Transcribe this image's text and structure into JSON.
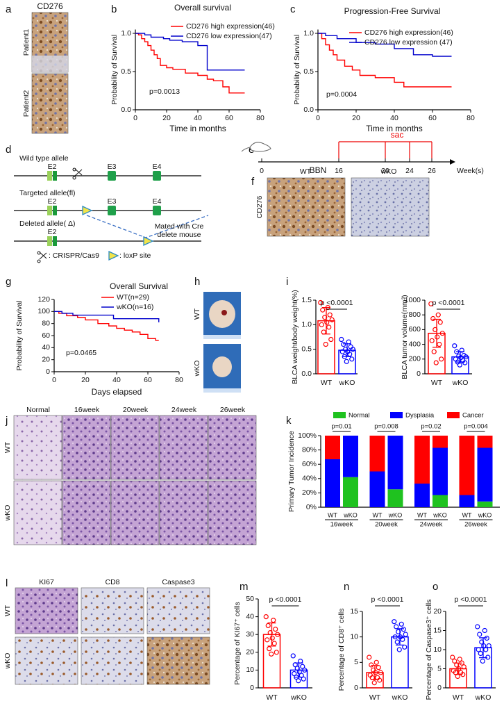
{
  "panel_letters": [
    "a",
    "b",
    "c",
    "d",
    "e",
    "f",
    "g",
    "h",
    "i",
    "j",
    "k",
    "l",
    "m",
    "n",
    "o"
  ],
  "panel_a": {
    "title": "CD276",
    "rows": [
      "Patient1",
      "Patient2"
    ]
  },
  "panel_d": {
    "alleles": [
      "Wild type allele",
      "Targeted allele(fl)",
      "Deleted allele( Δ)"
    ],
    "exons": [
      "E2",
      "E3",
      "E4"
    ],
    "note": [
      "Mated with Cre",
      "delete mouse"
    ],
    "legend": [
      ": CRISPR/Cas9",
      ": loxP site"
    ]
  },
  "panel_e": {
    "treatment": "BBN",
    "weeks": [
      0,
      16,
      20,
      24,
      26
    ],
    "unit": "Week(s)",
    "sac": "sac"
  },
  "panel_f": {
    "columns": [
      "WT",
      "wKO"
    ],
    "row": "CD276"
  },
  "panel_h": {
    "rows": [
      "WT",
      "wKO"
    ]
  },
  "panel_j": {
    "columns": [
      "Normal",
      "16week",
      "20week",
      "24week",
      "26week"
    ],
    "rows": [
      "WT",
      "wKO"
    ]
  },
  "panel_l": {
    "columns": [
      "KI67",
      "CD8",
      "Caspase3"
    ],
    "rows": [
      "WT",
      "wKO"
    ]
  },
  "chart_data": [
    {
      "type": "line",
      "step": true,
      "title": "Overall survival",
      "xlabel": "Time in months",
      "ylabel": "Probability of Survival",
      "xlim": [
        0,
        80
      ],
      "xticks": [
        0,
        20,
        40,
        60,
        80
      ],
      "ylim": [
        0,
        1.05
      ],
      "yticks": [
        {
          "value": 0,
          "label": "0.0"
        },
        0.5,
        {
          "value": 1,
          "label": "1.0"
        }
      ],
      "annotation": "p=0.0013",
      "series": [
        {
          "name": "CD276 high expression(46)",
          "color": "#ff0000",
          "x": [
            0,
            2,
            4,
            6,
            8,
            10,
            12,
            14,
            16,
            20,
            24,
            28,
            32,
            40,
            46,
            50,
            56,
            60,
            64,
            70
          ],
          "values": [
            1,
            0.98,
            0.93,
            0.89,
            0.84,
            0.78,
            0.72,
            0.67,
            0.58,
            0.55,
            0.53,
            0.53,
            0.48,
            0.45,
            0.4,
            0.38,
            0.3,
            0.22,
            0.22,
            0.22
          ]
        },
        {
          "name": "CD276 low expression(47)",
          "color": "#0000cc",
          "x": [
            0,
            6,
            10,
            18,
            22,
            30,
            40,
            46,
            60,
            70
          ],
          "values": [
            1,
            0.98,
            0.95,
            0.93,
            0.91,
            0.89,
            0.84,
            0.52,
            0.52,
            0.52
          ]
        }
      ]
    },
    {
      "type": "line",
      "step": true,
      "title": "Progression-Free Survival",
      "xlabel": "Time in months",
      "ylabel": "Probability of Survival",
      "xlim": [
        0,
        80
      ],
      "xticks": [
        0,
        20,
        40,
        60,
        80
      ],
      "ylim": [
        0,
        1.05
      ],
      "yticks": [
        {
          "value": 0,
          "label": "0.0"
        },
        0.5,
        {
          "value": 1,
          "label": "1.0"
        }
      ],
      "annotation": "p=0.0004",
      "series": [
        {
          "name": "CD276 high expression(46)",
          "color": "#ff0000",
          "x": [
            0,
            2,
            4,
            6,
            8,
            10,
            14,
            18,
            22,
            30,
            40,
            45,
            60,
            70
          ],
          "values": [
            1,
            0.93,
            0.85,
            0.78,
            0.72,
            0.65,
            0.57,
            0.52,
            0.45,
            0.42,
            0.36,
            0.3,
            0.3,
            0.3
          ]
        },
        {
          "name": "CD276 low expression (47)",
          "color": "#0000cc",
          "x": [
            0,
            4,
            10,
            20,
            30,
            40,
            50,
            60,
            70
          ],
          "values": [
            1,
            0.97,
            0.93,
            0.88,
            0.86,
            0.8,
            0.72,
            0.7,
            0.7
          ]
        }
      ]
    },
    {
      "type": "line",
      "step": true,
      "title": "Overall Survival",
      "xlabel": "Days elapsed",
      "ylabel": "Probability of Survival",
      "xlim": [
        0,
        80
      ],
      "xticks": [
        0,
        20,
        40,
        60,
        80
      ],
      "ylim": [
        0,
        120
      ],
      "yticks": [
        0,
        20,
        40,
        60,
        80,
        100,
        120
      ],
      "annotation": "p=0.0465",
      "series": [
        {
          "name": "WT(n=29)",
          "color": "#ff0000",
          "x": [
            0,
            3,
            8,
            15,
            20,
            28,
            35,
            40,
            45,
            50,
            55,
            60,
            65,
            67
          ],
          "values": [
            100,
            97,
            93,
            90,
            86,
            80,
            76,
            72,
            69,
            66,
            62,
            55,
            52,
            52
          ]
        },
        {
          "name": "wKO(n=16)",
          "color": "#0000cc",
          "x": [
            0,
            5,
            12,
            38,
            65,
            67
          ],
          "values": [
            100,
            97,
            94,
            88,
            88,
            82
          ]
        }
      ]
    },
    {
      "type": "bar",
      "ylabel": "BLCA weight/body weight(%)",
      "categories": [
        "WT",
        "wKO"
      ],
      "colors": [
        "#ff0000",
        "#0000ff"
      ],
      "values": [
        1.08,
        0.48
      ],
      "errors": [
        0.27,
        0.13
      ],
      "points": [
        [
          1.45,
          1.35,
          1.3,
          1.2,
          1.15,
          1.1,
          1.05,
          1.0,
          0.95,
          0.85,
          0.7,
          0.6
        ],
        [
          0.7,
          0.65,
          0.6,
          0.55,
          0.5,
          0.5,
          0.45,
          0.45,
          0.4,
          0.35,
          0.3,
          0.25
        ]
      ],
      "ylim": [
        0,
        1.5
      ],
      "yticks": [
        {
          "value": 0,
          "label": "0.0"
        },
        0.5,
        {
          "value": 1,
          "label": "1.0"
        },
        1.5
      ],
      "annotation": "p <0.0001"
    },
    {
      "type": "bar",
      "ylabel": "BLCA tumor volume(mm³)",
      "categories": [
        "WT",
        "wKO"
      ],
      "colors": [
        "#ff0000",
        "#0000ff"
      ],
      "values": [
        550,
        230
      ],
      "errors": [
        190,
        70
      ],
      "points": [
        [
          950,
          800,
          750,
          700,
          600,
          550,
          500,
          450,
          400,
          300,
          200,
          150
        ],
        [
          380,
          320,
          300,
          250,
          240,
          230,
          220,
          200,
          180,
          160,
          150,
          120
        ]
      ],
      "ylim": [
        0,
        1000
      ],
      "yticks": [
        0,
        200,
        400,
        600,
        800,
        1000
      ],
      "annotation": "p <0.0001"
    },
    {
      "type": "stacked_bar",
      "ylabel": "Primary Tumor Incidence",
      "categories": [
        "WT",
        "wKO",
        "WT",
        "wKO",
        "WT",
        "wKO",
        "WT",
        "wKO"
      ],
      "groups": [
        "16week",
        "20week",
        "24week",
        "26week"
      ],
      "series": [
        {
          "name": "Normal",
          "color": "#1fc21f",
          "values": [
            0,
            42,
            0,
            25,
            0,
            17,
            0,
            8
          ]
        },
        {
          "name": "Dysplasia",
          "color": "#0000ff",
          "values": [
            67,
            58,
            50,
            75,
            33,
            66,
            17,
            75
          ]
        },
        {
          "name": "Cancer",
          "color": "#ff0000",
          "values": [
            33,
            0,
            50,
            0,
            67,
            17,
            83,
            17
          ]
        }
      ],
      "annotations": [
        "p=0.01",
        "p=0.008",
        "p=0.02",
        "p=0.004"
      ],
      "ylim": [
        0,
        100
      ],
      "yticks": [
        {
          "value": 0,
          "label": "0%"
        },
        {
          "value": 20,
          "label": "20%"
        },
        {
          "value": 40,
          "label": "40%"
        },
        {
          "value": 60,
          "label": "60%"
        },
        {
          "value": 80,
          "label": "80%"
        },
        {
          "value": 100,
          "label": "100%"
        }
      ]
    },
    {
      "type": "bar",
      "ylabel": "Percentage of KI67⁺ cells",
      "categories": [
        "WT",
        "wKO"
      ],
      "colors": [
        "#ff0000",
        "#0000ff"
      ],
      "values": [
        30,
        10
      ],
      "errors": [
        6.5,
        4
      ],
      "points": [
        [
          40,
          38,
          35,
          33,
          31,
          30,
          28,
          27,
          25,
          22,
          20,
          19
        ],
        [
          18,
          15,
          13,
          12,
          11,
          10,
          9,
          8,
          7,
          6,
          5,
          4
        ]
      ],
      "ylim": [
        0,
        50
      ],
      "yticks": [
        0,
        10,
        20,
        30,
        40,
        50
      ],
      "annotation": "p <0.0001"
    },
    {
      "type": "bar",
      "ylabel": "Percentage of CD8⁺ cells",
      "categories": [
        "WT",
        "wKO"
      ],
      "colors": [
        "#ff0000",
        "#0000ff"
      ],
      "values": [
        3,
        10
      ],
      "errors": [
        1.4,
        1.6
      ],
      "points": [
        [
          6,
          5,
          4.5,
          4,
          3.5,
          3,
          3,
          2.5,
          2,
          2,
          1.5,
          1
        ],
        [
          13,
          12.5,
          12,
          11.5,
          11,
          10.5,
          10,
          10,
          9.5,
          9,
          8,
          7.5
        ]
      ],
      "ylim": [
        0,
        15
      ],
      "yticks": [
        0,
        5,
        10,
        15
      ],
      "annotation": "p <0.0001"
    },
    {
      "type": "bar",
      "ylabel": "Percentage of Caspase3⁺ cells",
      "categories": [
        "WT",
        "wKO"
      ],
      "colors": [
        "#ff0000",
        "#0000ff"
      ],
      "values": [
        5,
        10.5
      ],
      "errors": [
        1.5,
        2.6
      ],
      "points": [
        [
          8,
          7.5,
          7,
          6.5,
          6,
          5.5,
          5,
          4.5,
          4,
          4,
          3.5,
          3
        ],
        [
          16,
          15,
          14,
          13,
          12,
          11,
          11,
          10,
          10,
          9,
          8,
          7
        ]
      ],
      "ylim": [
        0,
        20
      ],
      "yticks": [
        0,
        5,
        10,
        15,
        20
      ],
      "annotation": "p <0.0001"
    }
  ]
}
